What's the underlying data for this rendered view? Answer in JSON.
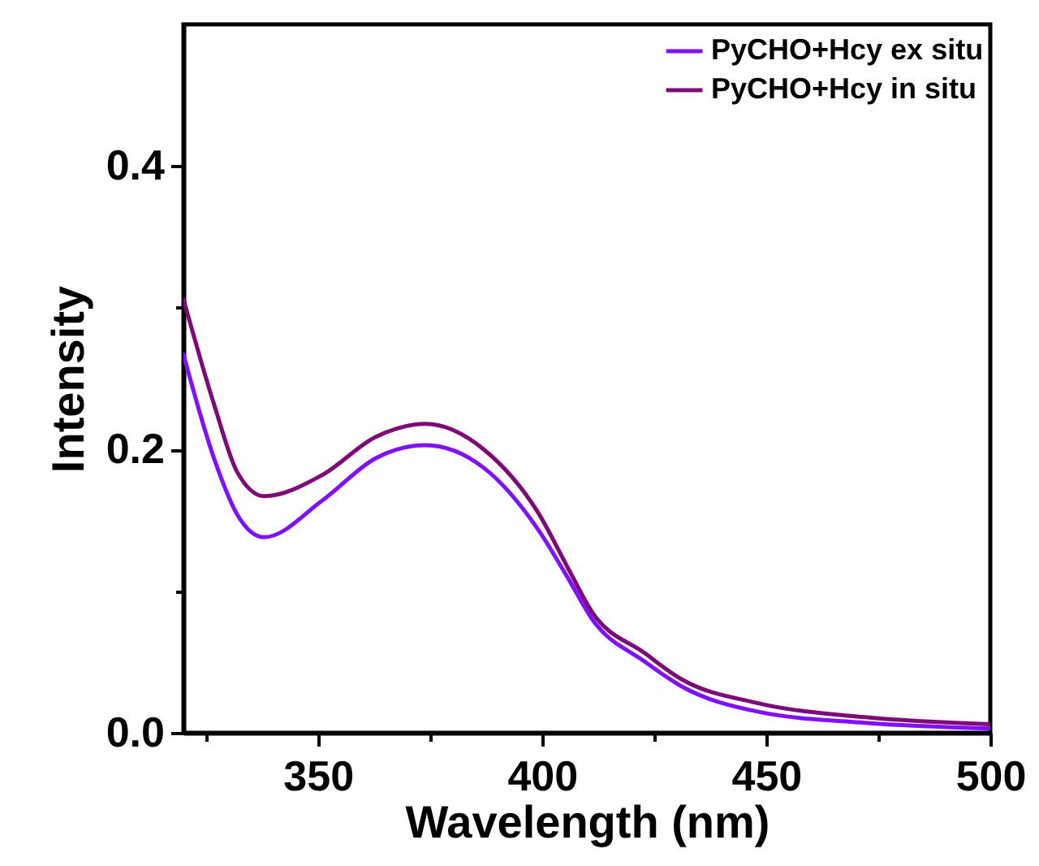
{
  "chart_data": {
    "type": "line",
    "xlabel": "Wavelength (nm)",
    "ylabel": "Intensity",
    "x": [
      320,
      327,
      332,
      338,
      351,
      363,
      374,
      387,
      399,
      406,
      411,
      423,
      431,
      448,
      472,
      500
    ],
    "series": [
      {
        "name": "PyCHO+Hcy ex situ",
        "color": "#8010ff",
        "values": [
          0.267,
          0.192,
          0.154,
          0.138,
          0.164,
          0.194,
          0.203,
          0.187,
          0.144,
          0.108,
          0.081,
          0.05,
          0.033,
          0.015,
          0.007,
          0.003
        ]
      },
      {
        "name": "PyCHO+Hcy in situ",
        "color": "#7d0a78",
        "values": [
          0.306,
          0.23,
          0.184,
          0.167,
          0.182,
          0.209,
          0.218,
          0.2,
          0.156,
          0.115,
          0.086,
          0.056,
          0.038,
          0.021,
          0.011,
          0.006
        ]
      }
    ],
    "xlim": [
      320,
      500
    ],
    "xticks": [
      {
        "value": 325,
        "label": null
      },
      350,
      {
        "value": 375,
        "label": null
      },
      400,
      {
        "value": 425,
        "label": null
      },
      450,
      {
        "value": 475,
        "label": null
      },
      500
    ],
    "ylim": [
      0,
      0.5
    ],
    "yticks": [
      {
        "value": 0,
        "label": "0.0"
      },
      {
        "value": 0.1,
        "label": null
      },
      0.2,
      {
        "value": 0.3,
        "label": null
      },
      0.4
    ],
    "grid": false,
    "legend": "top right",
    "line_style": "solid",
    "marker": "none"
  }
}
